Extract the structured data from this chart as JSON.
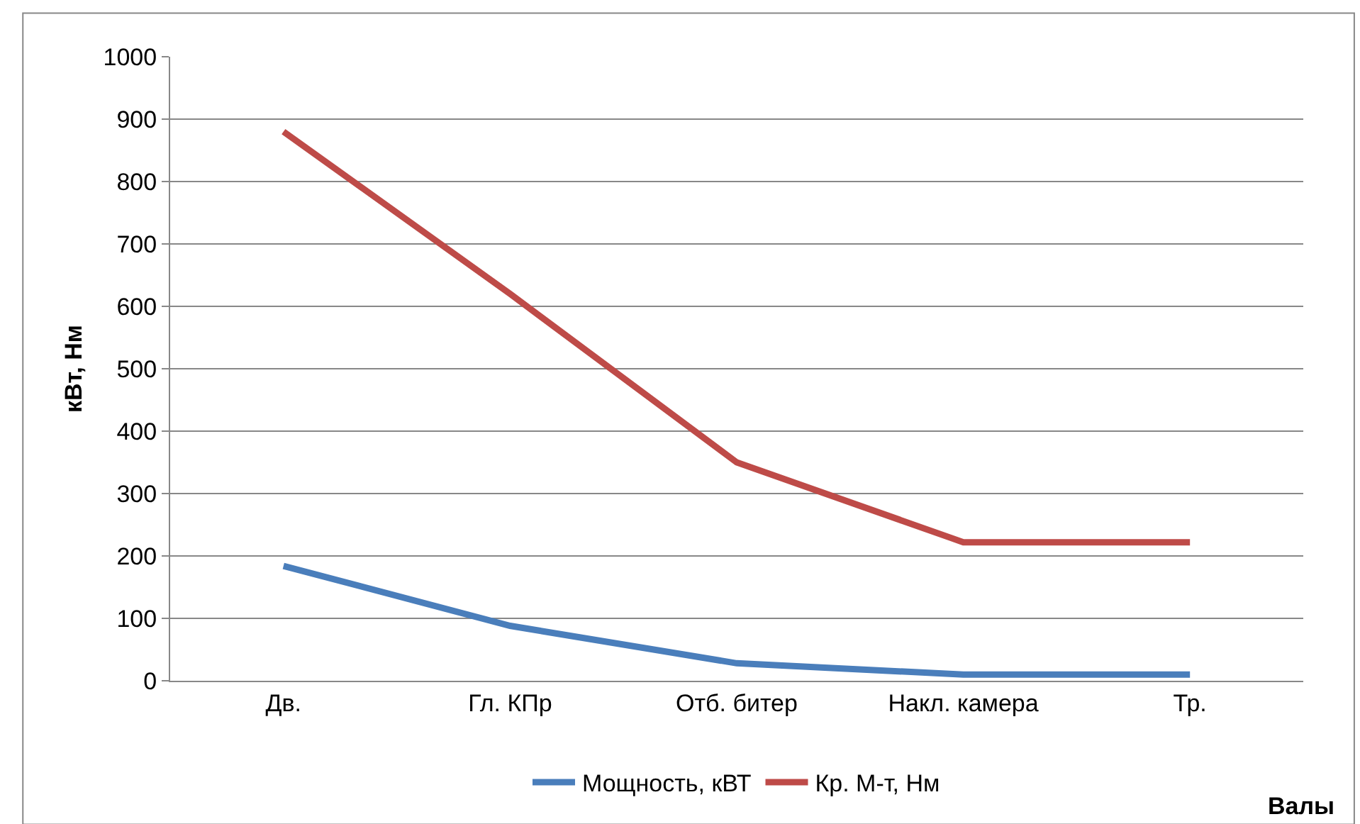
{
  "chart_data": {
    "type": "line",
    "xlabel": "Валы",
    "ylabel": "кВт, Нм",
    "categories": [
      "Дв.",
      "Гл. КПр",
      "Отб. битер",
      "Накл. камера",
      "Тр."
    ],
    "series": [
      {
        "name": "Мощность, кВТ",
        "color": "#4a7ebb",
        "values": [
          184,
          88,
          28,
          10,
          10
        ]
      },
      {
        "name": "Кр. М-т, Нм",
        "color": "#be4b48",
        "values": [
          880,
          620,
          350,
          222,
          222
        ]
      }
    ],
    "ylim": [
      0,
      1000
    ],
    "yticks": [
      0,
      100,
      200,
      300,
      400,
      500,
      600,
      700,
      800,
      900,
      1000
    ],
    "grid": "y",
    "legend": "bottom",
    "marker": "none",
    "line_style": "solid"
  }
}
